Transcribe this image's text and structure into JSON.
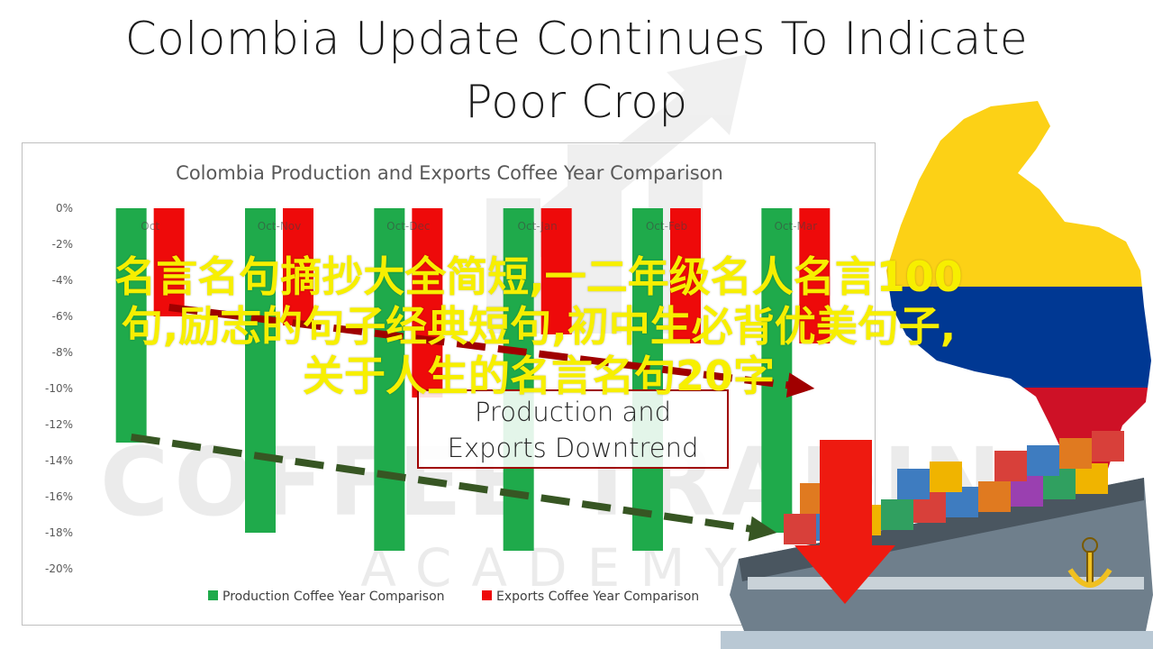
{
  "headline": {
    "line1": "Colombia Update Continues To Indicate",
    "line2": "Poor Crop"
  },
  "overlay": {
    "line1": "名言名句摘抄大全简短,一二年级名人名言100",
    "line2": "句,励志的句子经典短句,初中生必背优美句子,",
    "line3": "关于人生的名言名句20字"
  },
  "annotation": {
    "line1": "Production and",
    "line2": "Exports Downtrend"
  },
  "watermark": {
    "main": "COFFEE TRADING",
    "sub": "ACADEMY"
  },
  "colors": {
    "production": "#1faa4b",
    "exports": "#ee0a0a",
    "production_trend": "#375623",
    "exports_trend": "#a00000",
    "overlay_text": "#f7ef00",
    "flag_yellow": "#fcd116",
    "flag_blue": "#003893",
    "flag_red": "#ce1126"
  },
  "chart_data": {
    "type": "bar",
    "title": "Colombia Production and Exports Coffee Year Comparison",
    "categories": [
      "Oct",
      "Oct-Nov",
      "Oct-Dec",
      "Oct-Jan",
      "Oct-Feb",
      "Oct-Mar"
    ],
    "series": [
      {
        "name": "Production Coffee Year Comparison",
        "values": [
          -13,
          -18,
          -19,
          -19,
          -19,
          -18
        ]
      },
      {
        "name": "Exports Coffee Year Comparison",
        "values": [
          -6,
          -6.5,
          -10.5,
          -7,
          -7.5,
          -7.5
        ]
      }
    ],
    "ylim": [
      -20,
      0
    ],
    "yticks": [
      0,
      -2,
      -4,
      -6,
      -8,
      -10,
      -12,
      -14,
      -16,
      -18,
      -20
    ],
    "ytick_labels": [
      "0%",
      "-2%",
      "-4%",
      "-6%",
      "-8%",
      "-10%",
      "-12%",
      "-14%",
      "-16%",
      "-18%",
      "-20%"
    ],
    "legend_position": "bottom",
    "grid": false,
    "trendlines": [
      {
        "series": "Production Coffee Year Comparison",
        "from": [
          "Oct",
          -12.7
        ],
        "to": [
          "Oct-Mar",
          -18
        ]
      },
      {
        "series": "Exports Coffee Year Comparison",
        "from": [
          "Oct",
          -5.5
        ],
        "to": [
          "Oct-Mar",
          -10
        ]
      }
    ]
  }
}
